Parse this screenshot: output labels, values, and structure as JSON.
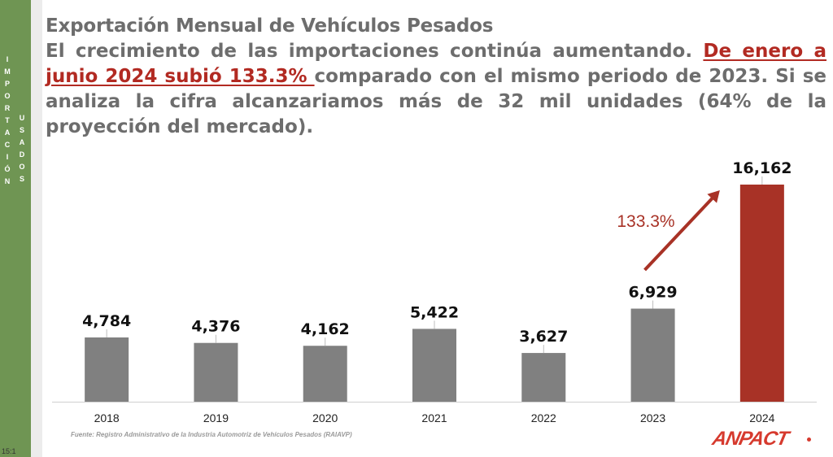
{
  "sidebar": {
    "word1": "IMPORTACIÓN",
    "word2": "USADOS",
    "color": "#6f9553"
  },
  "header": {
    "title": "Exportación Mensual de Vehículos Pesados",
    "text_a": "El crecimiento de las importaciones continúa aumentando. ",
    "text_highlight": "De enero a junio 2024 subió 133.3% ",
    "text_b": "comparado con el mismo periodo de 2023. Si se analiza la cifra alcanzariamos más de 32 mil unidades (64% de la proyección del mercado)."
  },
  "chart_data": {
    "type": "bar",
    "categories": [
      "2018",
      "2019",
      "2020",
      "2021",
      "2022",
      "2023",
      "2024"
    ],
    "values": [
      4784,
      4376,
      4162,
      5422,
      3627,
      6929,
      16162
    ],
    "value_labels": [
      "4,784",
      "4,376",
      "4,162",
      "5,422",
      "3,627",
      "6,929",
      "16,162"
    ],
    "bar_color": "#808080",
    "highlight_color": "#a83226",
    "highlight_index": 6,
    "annotation": "133.3%",
    "ylim": [
      0,
      16162
    ],
    "grid": false,
    "legend": "none"
  },
  "footer": {
    "source": "Fuente: Registro Administrativo de la Industria Automotriz de Vehículos Pesados (RAIAVP)",
    "logo": "ANPACT"
  },
  "taskbar": {
    "time": "15:1"
  }
}
